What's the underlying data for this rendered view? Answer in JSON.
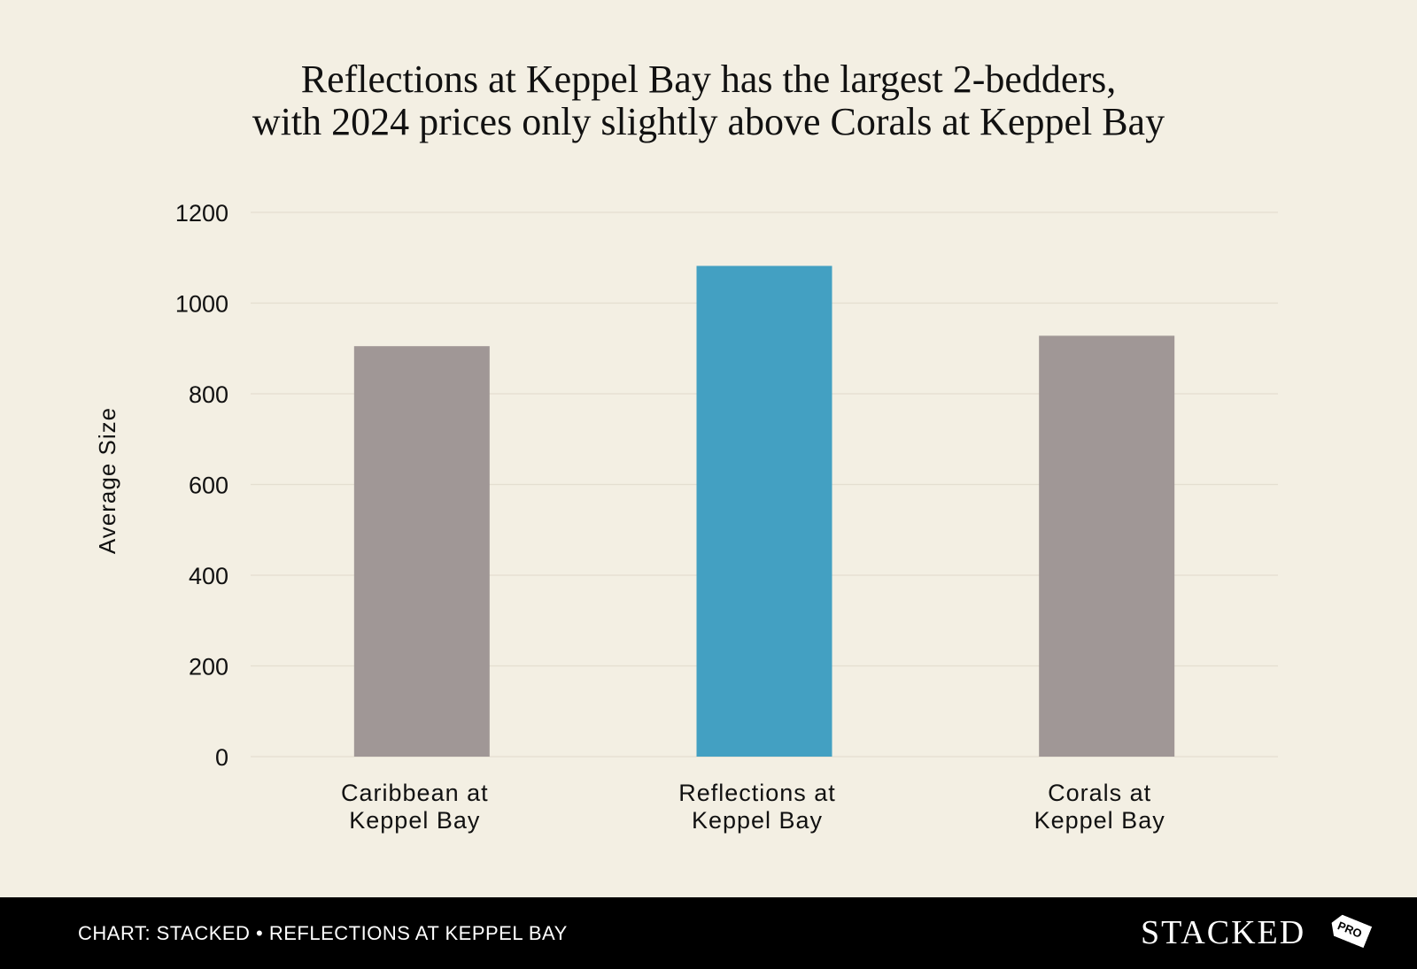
{
  "title_lines": [
    "Reflections at Keppel Bay has the largest 2-bedders,",
    "with 2024 prices only slightly above Corals at Keppel Bay"
  ],
  "chart_data": {
    "type": "bar",
    "categories": [
      [
        "Caribbean at",
        "Keppel Bay"
      ],
      [
        "Reflections at",
        "Keppel Bay"
      ],
      [
        "Corals at",
        "Keppel Bay"
      ]
    ],
    "values": [
      905,
      1082,
      928
    ],
    "bar_colors": [
      "#a09796",
      "#43a0c2",
      "#a09796"
    ],
    "ylabel": "Average Size",
    "xlabel": "",
    "ylim": [
      0,
      1200
    ],
    "yticks": [
      0,
      200,
      400,
      600,
      800,
      1000,
      1200
    ],
    "grid": true
  },
  "footer": {
    "credit": "CHART: STACKED • REFLECTIONS AT KEPPEL BAY",
    "brand": "STACKED",
    "badge": "PRO"
  }
}
